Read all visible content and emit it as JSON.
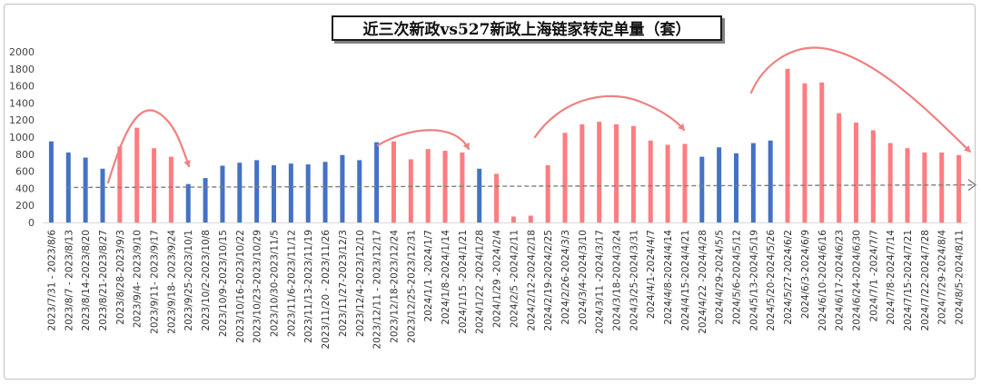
{
  "chart_data": {
    "type": "bar",
    "title": "近三次新政vs527新政上海链家转定单量（套）",
    "ylim": [
      0,
      2000
    ],
    "yticks": [
      0,
      200,
      400,
      600,
      800,
      1000,
      1200,
      1400,
      1600,
      1800,
      2000
    ],
    "grid": false,
    "legend": "none",
    "colors": {
      "blue": "#4472c4",
      "pink": "#ff7c80",
      "trend": "#808080",
      "arrow": "#f08080"
    },
    "categories": [
      "2023/7/31 - 2023/8/6",
      "2023/8/7 - 2023/8/13",
      "2023/8/14-2023/8/20",
      "2023/8/21-2023/8/27",
      "2023/8/28-2023/9/3",
      "2023/9/4- 2023/9/10",
      "2023/9/11- 2023/9/17",
      "2023/9/18- 2023/9/24",
      "2023/9/25-2023/10/1",
      "2023/10/2-2023/10/8",
      "2023/10/9-2023/10/15",
      "2023/10/16-2023/10/22",
      "2023/10/23-2023/10/29",
      "2023/10/30-2023/11/5",
      "2023/11/6-2023/11/12",
      "2023/11/13-2023/11/19",
      "2023/11/20 - 2023/11/26",
      "2023/11/27-2023/12/3",
      "2023/12/4-2023/12/10",
      "2023/12/11 - 2023/12/17",
      "2023/12/18-2023/12/24",
      "2023/12/25-2023/12/31",
      "2024/1/1 -2024/1/7",
      "2024/1/8-2024/1/14",
      "2024/1/15 -2024/1/21",
      "2024/1/22 -2024/1/28",
      "2024/1/29 -2024/2/4",
      "2024/2/5 -2024/2/11",
      "2024/2/12-2024/2/18",
      "2024/2/19-2024/2/25",
      "2024/2/26-2024/3/3",
      "2024/3/4-2024/3/10",
      "2024/3/11 -2024/3/17",
      "2024/3/18-2024/3/24",
      "2024/3/25-2024/3/31",
      "2024/4/1-2024/4/7",
      "2024/4/8-2024/4/14",
      "2024/4/15-2024/4/21",
      "2024/4/22 -2024/4/28",
      "2024/4/29-2024/5/5",
      "2024/5/6-2024/5/12",
      "2024/5/13-2024/5/19",
      "2024/5/20-2024/5/26",
      "2024/5/27-2024/6/2",
      "2024/6/3-2024/6/9",
      "2024/6/10-2024/6/16",
      "2024/6/17-2024/6/23",
      "2024/6/24-2024/6/30",
      "2024/7/1 -2024/7/7",
      "2024/7/8-2024/7/14",
      "2024/7/15-2024/7/21",
      "2024/7/22-2024/7/28",
      "2024/7/29-2024/8/4",
      "2024/8/5-2024/8/11"
    ],
    "values": [
      950,
      820,
      760,
      630,
      890,
      1110,
      870,
      770,
      450,
      520,
      665,
      700,
      730,
      670,
      690,
      680,
      710,
      790,
      730,
      940,
      950,
      740,
      860,
      840,
      820,
      630,
      570,
      70,
      80,
      670,
      1050,
      1150,
      1180,
      1150,
      1130,
      960,
      910,
      920,
      770,
      880,
      810,
      930,
      960,
      1800,
      1630,
      1640,
      1280,
      1170,
      1080,
      930,
      870,
      820,
      820,
      790
    ],
    "bar_colors": [
      "blue",
      "blue",
      "blue",
      "blue",
      "pink",
      "pink",
      "pink",
      "pink",
      "blue",
      "blue",
      "blue",
      "blue",
      "blue",
      "blue",
      "blue",
      "blue",
      "blue",
      "blue",
      "blue",
      "blue",
      "pink",
      "pink",
      "pink",
      "pink",
      "pink",
      "blue",
      "pink",
      "pink",
      "pink",
      "pink",
      "pink",
      "pink",
      "pink",
      "pink",
      "pink",
      "pink",
      "pink",
      "pink",
      "blue",
      "blue",
      "blue",
      "blue",
      "blue",
      "pink",
      "pink",
      "pink",
      "pink",
      "pink",
      "pink",
      "pink",
      "pink",
      "pink",
      "pink",
      "pink"
    ],
    "trendline": {
      "start_value": 410,
      "end_value": 440
    }
  }
}
